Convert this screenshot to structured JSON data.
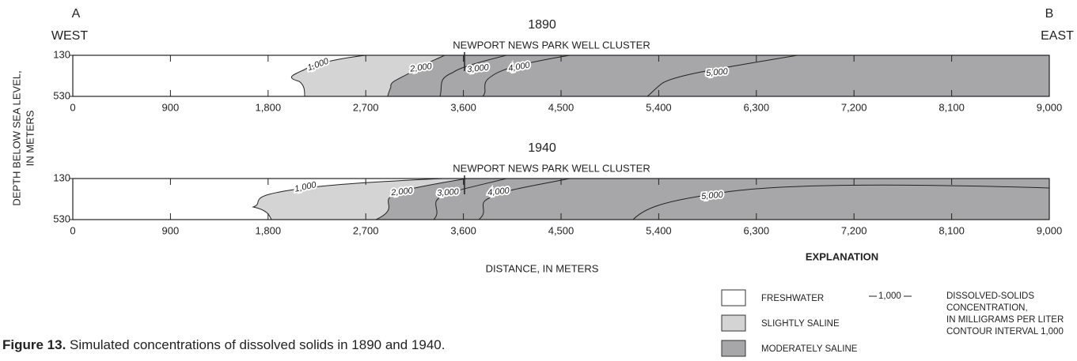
{
  "header": {
    "left_letter": "A",
    "right_letter": "B",
    "left_dir": "WEST",
    "right_dir": "EAST"
  },
  "y_label": [
    "DEPTH BELOW SEA LEVEL,",
    "IN METERS"
  ],
  "x_label": "DISTANCE, IN METERS",
  "chart_data": [
    {
      "type": "section",
      "title": "1890",
      "subtitle": "NEWPORT NEWS PARK WELL CLUSTER",
      "xlim": [
        0,
        9000
      ],
      "xticks": [
        0,
        900,
        {
          "value": 1800,
          "label": "1,800"
        },
        {
          "value": 2700,
          "label": "2,700"
        },
        {
          "value": 3600,
          "label": "3,600"
        },
        {
          "value": 4500,
          "label": "4,500"
        },
        {
          "value": 5400,
          "label": "5,400"
        },
        {
          "value": 6300,
          "label": "6,300"
        },
        {
          "value": 7200,
          "label": "7,200"
        },
        {
          "value": 8100,
          "label": "8,100"
        },
        {
          "value": 9000,
          "label": "9,000"
        }
      ],
      "ylim": [
        130,
        530
      ],
      "yticks": [
        130,
        530
      ],
      "y_inverted": true,
      "contours": [
        {
          "value": 1000,
          "label": "1,000"
        },
        {
          "value": 2000,
          "label": "2,000"
        },
        {
          "value": 3000,
          "label": "3,000"
        },
        {
          "value": 4000,
          "label": "4,000"
        },
        {
          "value": 5000,
          "label": "5,000"
        }
      ]
    },
    {
      "type": "section",
      "title": "1940",
      "subtitle": "NEWPORT NEWS PARK WELL CLUSTER",
      "xlim": [
        0,
        9000
      ],
      "xticks": [
        0,
        900,
        {
          "value": 1800,
          "label": "1,800"
        },
        {
          "value": 2700,
          "label": "2,700"
        },
        {
          "value": 3600,
          "label": "3,600"
        },
        {
          "value": 4500,
          "label": "4,500"
        },
        {
          "value": 5400,
          "label": "5,400"
        },
        {
          "value": 6300,
          "label": "6,300"
        },
        {
          "value": 7200,
          "label": "7,200"
        },
        {
          "value": 8100,
          "label": "8,100"
        },
        {
          "value": 9000,
          "label": "9,000"
        }
      ],
      "ylim": [
        130,
        530
      ],
      "yticks": [
        130,
        530
      ],
      "y_inverted": true,
      "contours": [
        {
          "value": 1000,
          "label": "1,000"
        },
        {
          "value": 2000,
          "label": "2,000"
        },
        {
          "value": 3000,
          "label": "3,000"
        },
        {
          "value": 4000,
          "label": "4,000"
        },
        {
          "value": 5000,
          "label": "5,000"
        }
      ]
    }
  ],
  "legend": {
    "title": "EXPLANATION",
    "items": [
      {
        "label": "FRESHWATER",
        "color": "#ffffff"
      },
      {
        "label": "SLIGHTLY SALINE",
        "color": "#d4d4d4"
      },
      {
        "label": "MODERATELY SALINE",
        "color": "#a7a7a9"
      }
    ],
    "contour_sample": "1,000",
    "contour_text": [
      "DISSOLVED-SOLIDS",
      "CONCENTRATION,",
      "IN MILLIGRAMS PER LITER",
      "CONTOUR INTERVAL 1,000"
    ]
  },
  "caption": {
    "label": "Figure 13.",
    "text": " Simulated concentrations of dissolved solids in 1890 and 1940."
  }
}
